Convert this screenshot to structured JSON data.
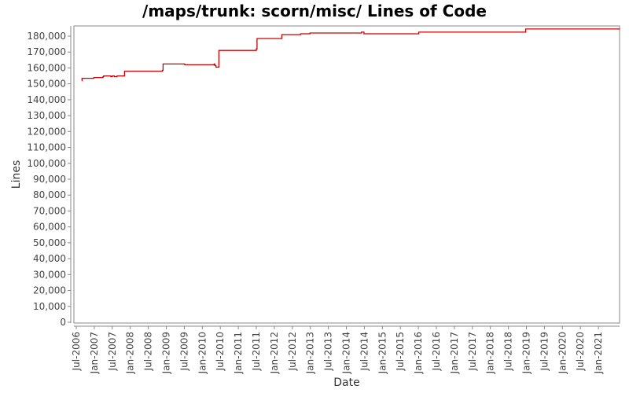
{
  "chart_data": {
    "type": "line",
    "title": "/maps/trunk: scorn/misc/ Lines of Code",
    "xlabel": "Date",
    "ylabel": "Lines",
    "ylim": [
      0,
      185000
    ],
    "grid": false,
    "legend": null,
    "line_color": "#cc0000",
    "y_ticks": [
      0,
      10000,
      20000,
      30000,
      40000,
      50000,
      60000,
      70000,
      80000,
      90000,
      100000,
      110000,
      120000,
      130000,
      140000,
      150000,
      160000,
      170000,
      180000
    ],
    "y_tick_labels": [
      "0",
      "10,000",
      "20,000",
      "30,000",
      "40,000",
      "50,000",
      "60,000",
      "70,000",
      "80,000",
      "90,000",
      "100,000",
      "110,000",
      "120,000",
      "130,000",
      "140,000",
      "150,000",
      "160,000",
      "170,000",
      "180,000"
    ],
    "x_tick_labels": [
      "Jul-2006",
      "Jan-2007",
      "Jul-2007",
      "Jan-2008",
      "Jul-2008",
      "Jan-2009",
      "Jul-2009",
      "Jan-2010",
      "Jul-2010",
      "Jan-2011",
      "Jul-2011",
      "Jan-2012",
      "Jul-2012",
      "Jan-2013",
      "Jul-2013",
      "Jan-2014",
      "Jul-2014",
      "Jan-2015",
      "Jul-2015",
      "Jan-2016",
      "Jul-2016",
      "Jan-2017",
      "Jul-2017",
      "Jan-2018",
      "Jul-2018",
      "Jan-2019",
      "Jul-2019",
      "Jan-2020",
      "Jul-2020",
      "Jan-2021"
    ],
    "x_range": [
      2006.42,
      2021.75
    ],
    "series": [
      {
        "name": "Lines of Code",
        "step": true,
        "points": [
          [
            2006.65,
            152000
          ],
          [
            2006.66,
            153500
          ],
          [
            2006.98,
            153500
          ],
          [
            2006.99,
            154000
          ],
          [
            2007.22,
            154000
          ],
          [
            2007.24,
            154500
          ],
          [
            2007.26,
            155000
          ],
          [
            2007.45,
            155000
          ],
          [
            2007.46,
            154500
          ],
          [
            2007.5,
            155000
          ],
          [
            2007.55,
            155000
          ],
          [
            2007.56,
            154500
          ],
          [
            2007.62,
            154500
          ],
          [
            2007.63,
            155000
          ],
          [
            2007.83,
            155000
          ],
          [
            2007.84,
            158000
          ],
          [
            2008.88,
            158000
          ],
          [
            2008.89,
            158500
          ],
          [
            2008.91,
            162500
          ],
          [
            2009.5,
            162500
          ],
          [
            2009.51,
            162000
          ],
          [
            2010.3,
            162000
          ],
          [
            2010.33,
            162500
          ],
          [
            2010.35,
            161500
          ],
          [
            2010.38,
            160500
          ],
          [
            2010.45,
            160500
          ],
          [
            2010.46,
            171000
          ],
          [
            2011.48,
            171000
          ],
          [
            2011.5,
            172000
          ],
          [
            2011.52,
            178500
          ],
          [
            2012.2,
            178500
          ],
          [
            2012.21,
            181000
          ],
          [
            2012.72,
            181000
          ],
          [
            2012.73,
            181500
          ],
          [
            2012.98,
            181500
          ],
          [
            2012.99,
            182000
          ],
          [
            2014.4,
            182000
          ],
          [
            2014.42,
            182500
          ],
          [
            2014.48,
            182500
          ],
          [
            2014.49,
            181500
          ],
          [
            2016.0,
            181500
          ],
          [
            2016.01,
            182500
          ],
          [
            2018.97,
            182500
          ],
          [
            2018.98,
            184500
          ],
          [
            2021.6,
            184500
          ]
        ]
      }
    ]
  }
}
